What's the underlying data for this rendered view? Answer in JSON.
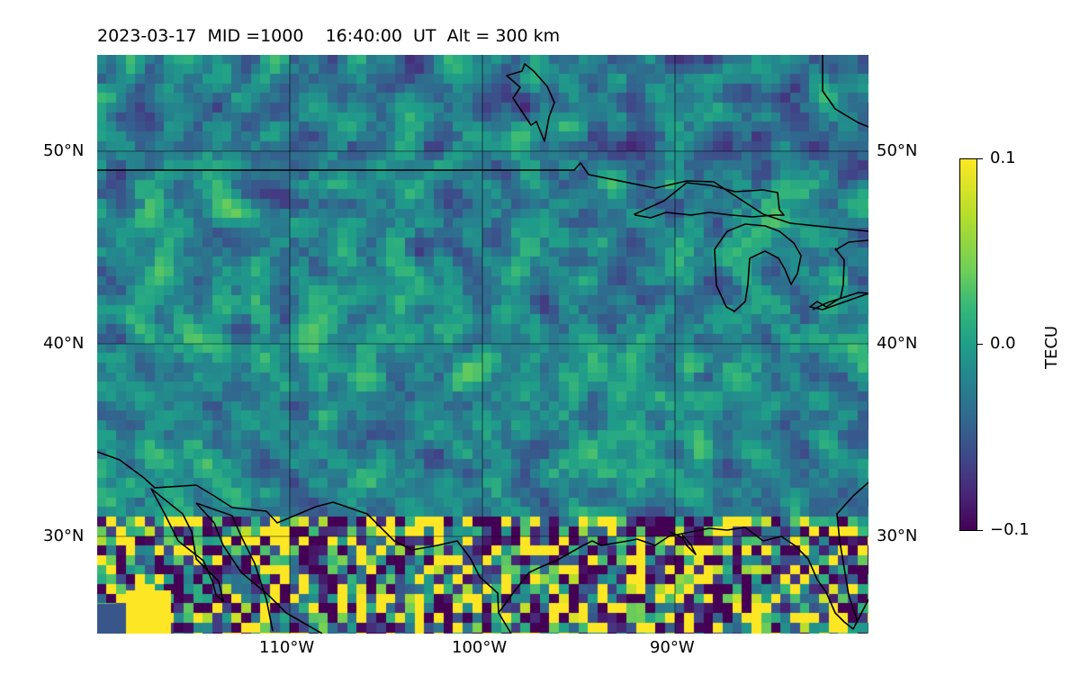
{
  "title": "2023-03-17  MID =1000    16:40:00  UT  Alt = 300 km",
  "map": {
    "extent": {
      "lon_min": -120,
      "lon_max": -80,
      "lat_min": 25,
      "lat_max": 55
    },
    "lat_labels_left": [
      "50°N",
      "40°N",
      "30°N"
    ],
    "lat_labels_right": [
      "50°N",
      "40°N",
      "30°N"
    ],
    "lon_labels": [
      "110°W",
      "100°W",
      "90°W"
    ],
    "gridlines": {
      "lats": [
        50,
        40,
        30
      ],
      "lons": [
        -110,
        -100,
        -90
      ]
    },
    "colormap": "viridis",
    "field_name": "TEC anomaly (gridded pixels)"
  },
  "colorbar": {
    "label": "TECU",
    "ticks": [
      "0.1",
      "0.0",
      "−0.1"
    ],
    "vmin": -0.1,
    "vmax": 0.1
  },
  "colors": {
    "coastline": "#000000",
    "gridline": "#000000",
    "cmap_low": "#440154",
    "cmap_high": "#fde725"
  }
}
